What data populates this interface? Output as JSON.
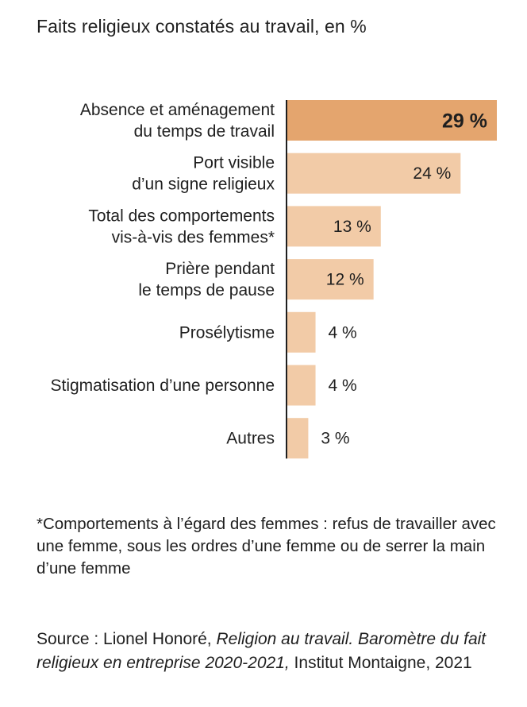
{
  "header": {
    "title": "Faits religieux constatés au travail, en %"
  },
  "chart_data": {
    "type": "bar",
    "orientation": "horizontal",
    "title": "Faits religieux constatés au travail, en %",
    "xlabel": "",
    "ylabel": "",
    "xlim": [
      0,
      29
    ],
    "grid": false,
    "categories": [
      [
        "Absence et aménagement",
        "du temps de travail"
      ],
      [
        "Port visible",
        "d’un signe religieux"
      ],
      [
        "Total des comportements",
        "vis-à-vis des femmes*"
      ],
      [
        "Prière pendant",
        "le temps de pause"
      ],
      [
        "Prosélytisme"
      ],
      [
        "Stigmatisation d’une personne"
      ],
      [
        "Autres"
      ]
    ],
    "values": [
      29,
      24,
      13,
      12,
      4,
      4,
      3
    ],
    "value_labels": [
      "29 %",
      "24 %",
      "13 %",
      "12 %",
      "4 %",
      "4 %",
      "3 %"
    ],
    "highlight_index": 0,
    "colors": {
      "highlight": "#E4A56E",
      "bar": "#F2CBA7",
      "axis": "#1f1f1f"
    }
  },
  "footnote": {
    "text": "*Comportements à l’égard des femmes : refus de travailler avec une femme, sous les ordres d’une femme ou de serrer la main d’une femme"
  },
  "source": {
    "prefix": "Source : Lionel Honoré, ",
    "italic": "Religion au travail. Baromètre du fait religieux en entreprise 2020-2021,",
    "suffix": " Institut Montaigne, 2021"
  }
}
